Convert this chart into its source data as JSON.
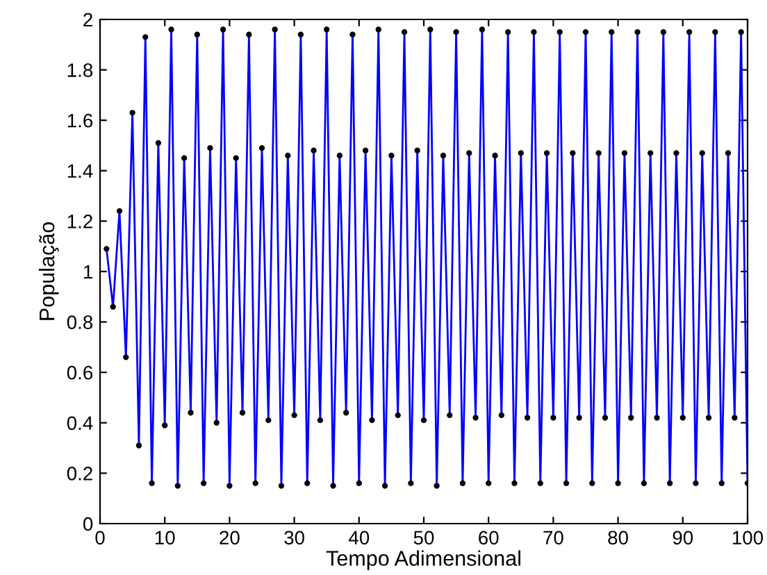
{
  "chart_data": {
    "type": "line",
    "xlabel": "Tempo Adimensional",
    "ylabel": "População",
    "x": [
      1,
      2,
      3,
      4,
      5,
      6,
      7,
      8,
      9,
      10,
      11,
      12,
      13,
      14,
      15,
      16,
      17,
      18,
      19,
      20,
      21,
      22,
      23,
      24,
      25,
      26,
      27,
      28,
      29,
      30,
      31,
      32,
      33,
      34,
      35,
      36,
      37,
      38,
      39,
      40,
      41,
      42,
      43,
      44,
      45,
      46,
      47,
      48,
      49,
      50,
      51,
      52,
      53,
      54,
      55,
      56,
      57,
      58,
      59,
      60,
      61,
      62,
      63,
      64,
      65,
      66,
      67,
      68,
      69,
      70,
      71,
      72,
      73,
      74,
      75,
      76,
      77,
      78,
      79,
      80,
      81,
      82,
      83,
      84,
      85,
      86,
      87,
      88,
      89,
      90,
      91,
      92,
      93,
      94,
      95,
      96,
      97,
      98,
      99,
      100
    ],
    "series": [
      {
        "color": "#0000ff",
        "values": [
          1.09,
          0.86,
          1.24,
          0.66,
          1.63,
          0.31,
          1.93,
          0.16,
          1.51,
          0.39,
          1.96,
          0.15,
          1.45,
          0.44,
          1.94,
          0.16,
          1.49,
          0.4,
          1.96,
          0.15,
          1.45,
          0.44,
          1.94,
          0.16,
          1.49,
          0.41,
          1.96,
          0.15,
          1.46,
          0.43,
          1.94,
          0.16,
          1.48,
          0.41,
          1.96,
          0.15,
          1.46,
          0.44,
          1.94,
          0.16,
          1.48,
          0.41,
          1.96,
          0.15,
          1.46,
          0.43,
          1.95,
          0.16,
          1.48,
          0.41,
          1.96,
          0.15,
          1.46,
          0.43,
          1.95,
          0.16,
          1.47,
          0.42,
          1.96,
          0.16,
          1.46,
          0.43,
          1.95,
          0.16,
          1.47,
          0.42,
          1.95,
          0.16,
          1.47,
          0.42,
          1.95,
          0.16,
          1.47,
          0.42,
          1.95,
          0.16,
          1.47,
          0.42,
          1.95,
          0.16,
          1.47,
          0.42,
          1.95,
          0.16,
          1.47,
          0.42,
          1.95,
          0.16,
          1.47,
          0.42,
          1.95,
          0.16,
          1.47,
          0.42,
          1.95,
          0.16,
          1.47,
          0.42,
          1.95,
          0.16
        ]
      }
    ],
    "xlim": [
      0,
      100
    ],
    "xticks": [
      0,
      10,
      20,
      30,
      40,
      50,
      60,
      70,
      80,
      90,
      100
    ],
    "ylim": [
      0,
      2
    ],
    "yticks": [
      0,
      0.2,
      0.4,
      0.6,
      0.8,
      1,
      1.2,
      1.4,
      1.6,
      1.8,
      2
    ],
    "marker": "circle",
    "line_style": "solid",
    "grid": false,
    "legend": false
  }
}
